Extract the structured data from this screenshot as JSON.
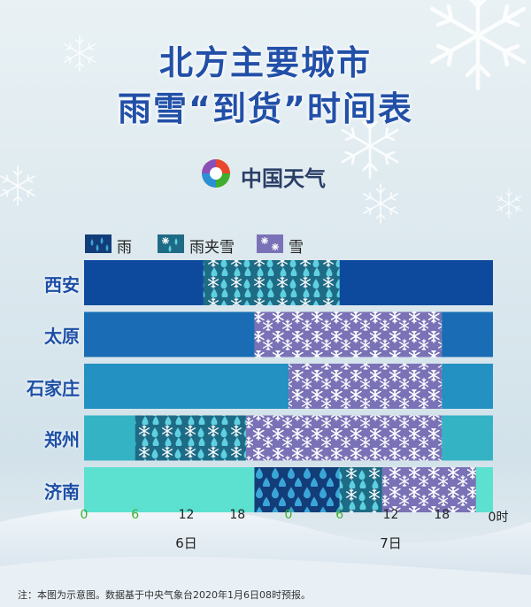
{
  "title": {
    "line1": "北方主要城市",
    "line2": "雨雪“到货”时间表"
  },
  "logo": {
    "text": "中国天气"
  },
  "legend": [
    {
      "key": "rain",
      "label": "雨"
    },
    {
      "key": "sleet",
      "label": "雨夹雪"
    },
    {
      "key": "snow",
      "label": "雪"
    }
  ],
  "colors": {
    "title": "#2250a8",
    "rain": "#123d79",
    "sleet": "#1e6b86",
    "snow": "#7a72b6",
    "city_label": "#1d4fa6",
    "tick_green": "#3fae2e"
  },
  "chart_data": {
    "type": "timeline",
    "x_unit": "时",
    "x_range_hours": [
      0,
      48
    ],
    "ticks": [
      {
        "label": "0",
        "hour": 0,
        "green": true
      },
      {
        "label": "6",
        "hour": 6,
        "green": true
      },
      {
        "label": "12",
        "hour": 12,
        "green": false
      },
      {
        "label": "18",
        "hour": 18,
        "green": false
      },
      {
        "label": "0",
        "hour": 24,
        "green": true
      },
      {
        "label": "6",
        "hour": 30,
        "green": true
      },
      {
        "label": "12",
        "hour": 36,
        "green": false
      },
      {
        "label": "18",
        "hour": 42,
        "green": false
      },
      {
        "label": "0时",
        "hour": 48,
        "green": false
      }
    ],
    "dates": [
      {
        "label": "6日",
        "hour": 12
      },
      {
        "label": "7日",
        "hour": 36
      }
    ],
    "rows": [
      {
        "city": "西安",
        "base_color": "#0d4a9e",
        "segments": [
          {
            "type": "sleet",
            "start": 14,
            "end": 30
          }
        ]
      },
      {
        "city": "太原",
        "base_color": "#1a6db4",
        "segments": [
          {
            "type": "snow",
            "start": 20,
            "end": 42
          }
        ]
      },
      {
        "city": "石家庄",
        "base_color": "#2391c1",
        "segments": [
          {
            "type": "snow",
            "start": 24,
            "end": 42
          }
        ]
      },
      {
        "city": "郑州",
        "base_color": "#34b3c4",
        "segments": [
          {
            "type": "sleet",
            "start": 6,
            "end": 19
          },
          {
            "type": "snow",
            "start": 19,
            "end": 42
          }
        ]
      },
      {
        "city": "济南",
        "base_color": "#5ce0d0",
        "segments": [
          {
            "type": "rain",
            "start": 20,
            "end": 30
          },
          {
            "type": "sleet",
            "start": 30,
            "end": 35
          },
          {
            "type": "snow",
            "start": 35,
            "end": 46
          }
        ]
      }
    ]
  },
  "footer": "注：本图为示意图。数据基于中央气象台2020年1月6日08时预报。"
}
